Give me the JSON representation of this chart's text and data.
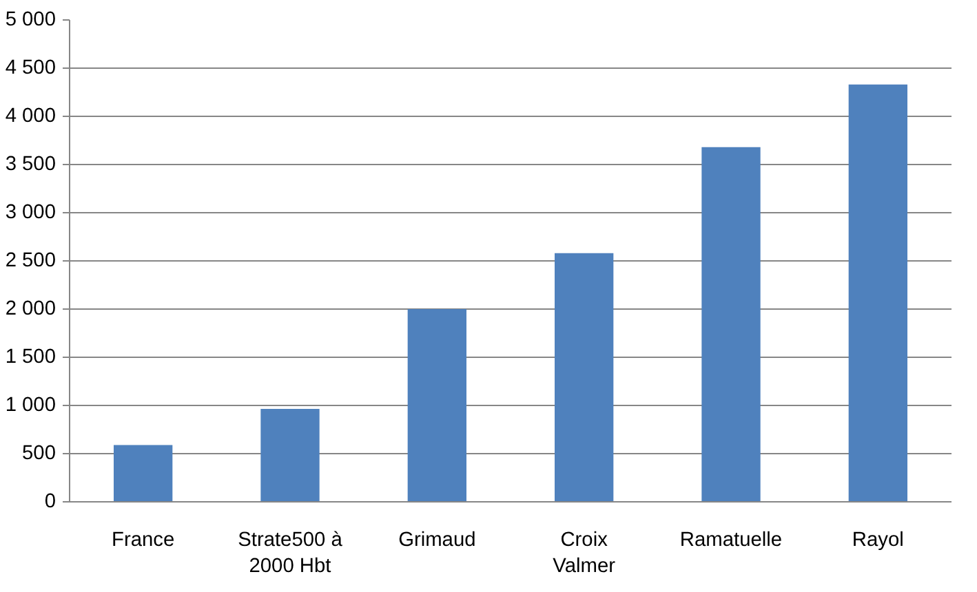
{
  "chart_data": {
    "type": "bar",
    "categories": [
      "France",
      "Strate500 à 2000 Hbt",
      "Grimaud",
      "Croix Valmer",
      "Ramatuelle",
      "Rayol"
    ],
    "values": [
      590,
      965,
      2000,
      2580,
      3680,
      4330
    ],
    "color": "#4f81bd",
    "ylim": [
      0,
      5000
    ],
    "yticks": [
      {
        "value": 0,
        "label": "0"
      },
      {
        "value": 500,
        "label": "500"
      },
      {
        "value": 1000,
        "label": "1 000"
      },
      {
        "value": 1500,
        "label": "1 500"
      },
      {
        "value": 2000,
        "label": "2 000"
      },
      {
        "value": 2500,
        "label": "2 500"
      },
      {
        "value": 3000,
        "label": "3 000"
      },
      {
        "value": 3500,
        "label": "3 500"
      },
      {
        "value": 4000,
        "label": "4 000"
      },
      {
        "value": 4500,
        "label": "4 500"
      },
      {
        "value": 5000,
        "label": "5 000"
      }
    ],
    "grid": "y"
  }
}
